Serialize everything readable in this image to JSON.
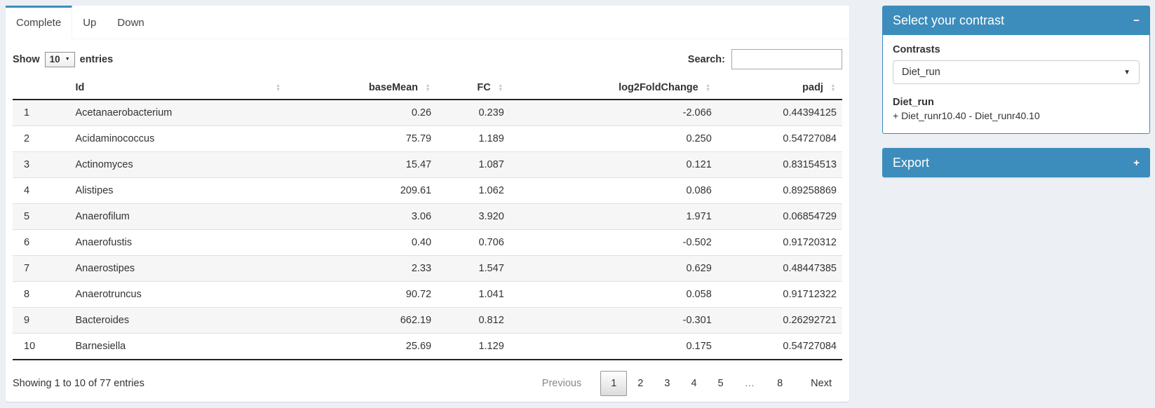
{
  "colors": {
    "accent": "#3c8dbc",
    "page_bg": "#ecf0f5",
    "stripe": "#f6f6f6"
  },
  "icons": {
    "sort": "sort-up-down",
    "caret_down": "▼",
    "mini_caret": "▼"
  },
  "tabs": [
    {
      "label": "Complete",
      "active": true
    },
    {
      "label": "Up",
      "active": false
    },
    {
      "label": "Down",
      "active": false
    }
  ],
  "table_controls": {
    "show_label": "Show",
    "page_length": "10",
    "entries_label": "entries",
    "search_label": "Search:",
    "search_value": ""
  },
  "table": {
    "columns": [
      "Id",
      "baseMean",
      "FC",
      "log2FoldChange",
      "padj"
    ],
    "rows": [
      {
        "num": "1",
        "id": "Acetanaerobacterium",
        "baseMean": "0.26",
        "fc": "0.239",
        "log2fc": "-2.066",
        "padj": "0.44394125"
      },
      {
        "num": "2",
        "id": "Acidaminococcus",
        "baseMean": "75.79",
        "fc": "1.189",
        "log2fc": "0.250",
        "padj": "0.54727084"
      },
      {
        "num": "3",
        "id": "Actinomyces",
        "baseMean": "15.47",
        "fc": "1.087",
        "log2fc": "0.121",
        "padj": "0.83154513"
      },
      {
        "num": "4",
        "id": "Alistipes",
        "baseMean": "209.61",
        "fc": "1.062",
        "log2fc": "0.086",
        "padj": "0.89258869"
      },
      {
        "num": "5",
        "id": "Anaerofilum",
        "baseMean": "3.06",
        "fc": "3.920",
        "log2fc": "1.971",
        "padj": "0.06854729"
      },
      {
        "num": "6",
        "id": "Anaerofustis",
        "baseMean": "0.40",
        "fc": "0.706",
        "log2fc": "-0.502",
        "padj": "0.91720312"
      },
      {
        "num": "7",
        "id": "Anaerostipes",
        "baseMean": "2.33",
        "fc": "1.547",
        "log2fc": "0.629",
        "padj": "0.48447385"
      },
      {
        "num": "8",
        "id": "Anaerotruncus",
        "baseMean": "90.72",
        "fc": "1.041",
        "log2fc": "0.058",
        "padj": "0.91712322"
      },
      {
        "num": "9",
        "id": "Bacteroides",
        "baseMean": "662.19",
        "fc": "0.812",
        "log2fc": "-0.301",
        "padj": "0.26292721"
      },
      {
        "num": "10",
        "id": "Barnesiella",
        "baseMean": "25.69",
        "fc": "1.129",
        "log2fc": "0.175",
        "padj": "0.54727084"
      }
    ]
  },
  "footer": {
    "info": "Showing 1 to 10 of 77 entries",
    "previous": "Previous",
    "pages": [
      "1",
      "2",
      "3",
      "4",
      "5",
      "…",
      "8"
    ],
    "current_page": "1",
    "next": "Next"
  },
  "contrast_panel": {
    "title": "Select your contrast",
    "collapse_icon": "−",
    "contrasts_label": "Contrasts",
    "selected_contrast": "Diet_run",
    "contrast_name": "Diet_run",
    "contrast_formula": "+ Diet_runr10.40 - Diet_runr40.10"
  },
  "export_panel": {
    "title": "Export",
    "collapse_icon": "+"
  }
}
